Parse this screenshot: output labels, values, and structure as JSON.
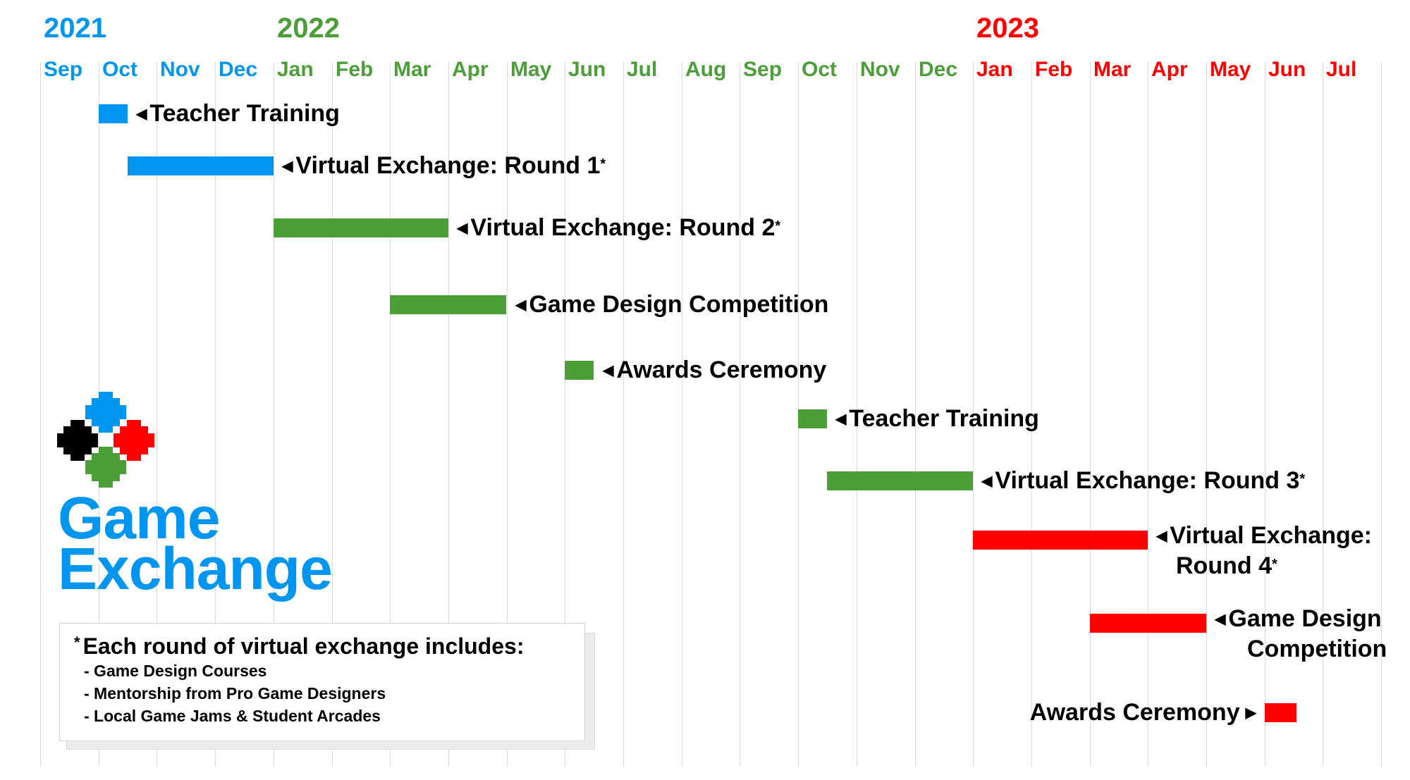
{
  "chart_data": {
    "type": "gantt",
    "title": "",
    "years": [
      {
        "label": "2021",
        "start_month_index": 0,
        "color": "#0096f0"
      },
      {
        "label": "2022",
        "start_month_index": 4,
        "color": "#4c9e38"
      },
      {
        "label": "2023",
        "start_month_index": 16,
        "color": "#ff0000"
      }
    ],
    "months": [
      "Sep",
      "Oct",
      "Nov",
      "Dec",
      "Jan",
      "Feb",
      "Mar",
      "Apr",
      "May",
      "Jun",
      "Jul",
      "Aug",
      "Sep",
      "Oct",
      "Nov",
      "Dec",
      "Jan",
      "Feb",
      "Mar",
      "Apr",
      "May",
      "Jun",
      "Jul"
    ],
    "month_range": [
      0,
      23
    ],
    "tasks": [
      {
        "name": "Teacher Training",
        "asterisk": false,
        "start": 1.0,
        "end": 1.5,
        "year": "2021",
        "label_side": "right"
      },
      {
        "name": "Virtual Exchange: Round 1",
        "asterisk": true,
        "start": 1.5,
        "end": 4.0,
        "year": "2021",
        "label_side": "right"
      },
      {
        "name": "Virtual Exchange: Round 2",
        "asterisk": true,
        "start": 4.0,
        "end": 7.0,
        "year": "2022",
        "label_side": "right"
      },
      {
        "name": "Game Design Competition",
        "asterisk": false,
        "start": 6.0,
        "end": 8.0,
        "year": "2022",
        "label_side": "right"
      },
      {
        "name": "Awards Ceremony",
        "asterisk": false,
        "start": 9.0,
        "end": 9.5,
        "year": "2022",
        "label_side": "right"
      },
      {
        "name": "Teacher Training",
        "asterisk": false,
        "start": 13.0,
        "end": 13.5,
        "year": "2022",
        "label_side": "right"
      },
      {
        "name": "Virtual Exchange: Round 3",
        "asterisk": true,
        "start": 13.5,
        "end": 16.0,
        "year": "2022",
        "label_side": "right"
      },
      {
        "name": "Virtual Exchange:",
        "name2": "Round 4",
        "asterisk": true,
        "start": 16.0,
        "end": 19.0,
        "year": "2023",
        "label_side": "right"
      },
      {
        "name": "Game Design",
        "name2": "Competition",
        "asterisk": false,
        "start": 18.0,
        "end": 20.0,
        "year": "2023",
        "label_side": "right"
      },
      {
        "name": "Awards Ceremony",
        "asterisk": false,
        "start": 21.0,
        "end": 21.55,
        "year": "2023",
        "label_side": "left"
      }
    ]
  },
  "logo": {
    "line1": "Game",
    "line2": "Exchange",
    "colors": {
      "blue": "#0096f0",
      "black": "#000000",
      "red": "#ff0000",
      "green": "#4c9e38"
    }
  },
  "note": {
    "marker": "*",
    "heading": "Each round of virtual exchange includes:",
    "items": [
      "- Game Design Courses",
      "- Mentorship from Pro Game Designers",
      "- Local Game Jams & Student Arcades"
    ]
  }
}
